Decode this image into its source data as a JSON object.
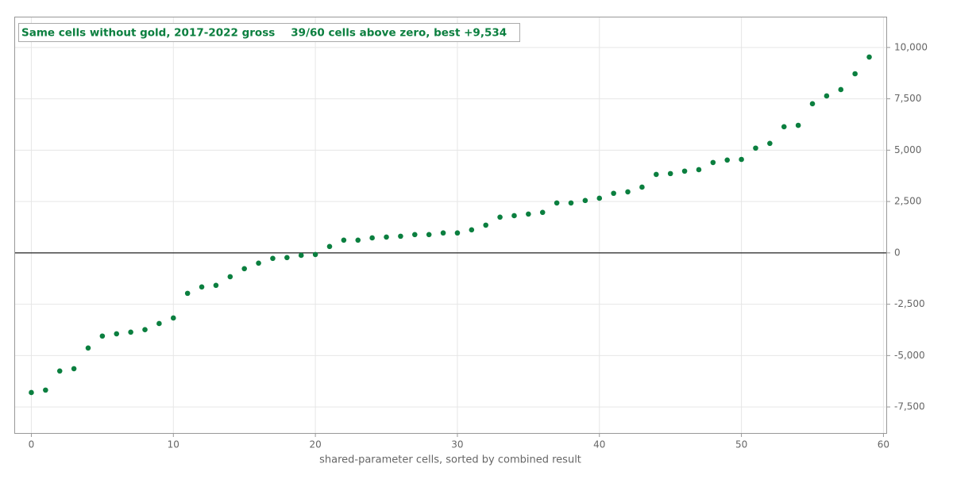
{
  "chart_data": {
    "type": "scatter",
    "title": "Same cells without gold, 2017-2022 gross",
    "subtitle": "39/60 cells above zero, best +9,534",
    "x_label": "shared-parameter cells, sorted by combined result",
    "series": [
      {
        "color": "#0b7f3f",
        "x": [
          0,
          1,
          2,
          3,
          4,
          5,
          6,
          7,
          8,
          9,
          10,
          11,
          12,
          13,
          14,
          15,
          16,
          17,
          18,
          19,
          20,
          21,
          22,
          23,
          24,
          25,
          26,
          27,
          28,
          29,
          30,
          31,
          32,
          33,
          34,
          35,
          36,
          37,
          38,
          39,
          40,
          41,
          42,
          43,
          44,
          45,
          46,
          47,
          48,
          49,
          50,
          51,
          52,
          53,
          54,
          55,
          56,
          57,
          58,
          59
        ],
        "values": [
          -6800,
          -6680,
          -5750,
          -5640,
          -4630,
          -4050,
          -3940,
          -3860,
          -3740,
          -3440,
          -3170,
          -1970,
          -1660,
          -1580,
          -1160,
          -770,
          -500,
          -270,
          -230,
          -120,
          -80,
          310,
          620,
          620,
          730,
          770,
          810,
          890,
          890,
          970,
          970,
          1120,
          1350,
          1740,
          1810,
          1890,
          1970,
          2430,
          2430,
          2550,
          2660,
          2900,
          2970,
          3200,
          3820,
          3860,
          3980,
          4050,
          4400,
          4520,
          4550,
          5100,
          5330,
          6140,
          6210,
          7260,
          7640,
          7950,
          8720,
          9534
        ]
      }
    ],
    "xlim": [
      -1.2,
      60.2
    ],
    "xticks": [
      0,
      10,
      20,
      30,
      40,
      50,
      60
    ],
    "ylim": [
      -8770,
      11500
    ],
    "yticks": [
      {
        "value": -7500,
        "label": "-7,500"
      },
      {
        "value": -5000,
        "label": "-5,000"
      },
      {
        "value": -2500,
        "label": "-2,500"
      },
      0,
      {
        "value": 2500,
        "label": "2,500"
      },
      {
        "value": 5000,
        "label": "5,000"
      },
      {
        "value": 7500,
        "label": "7,500"
      },
      {
        "value": 10000,
        "label": "10,000"
      }
    ],
    "grid": true,
    "zero_line": true
  }
}
